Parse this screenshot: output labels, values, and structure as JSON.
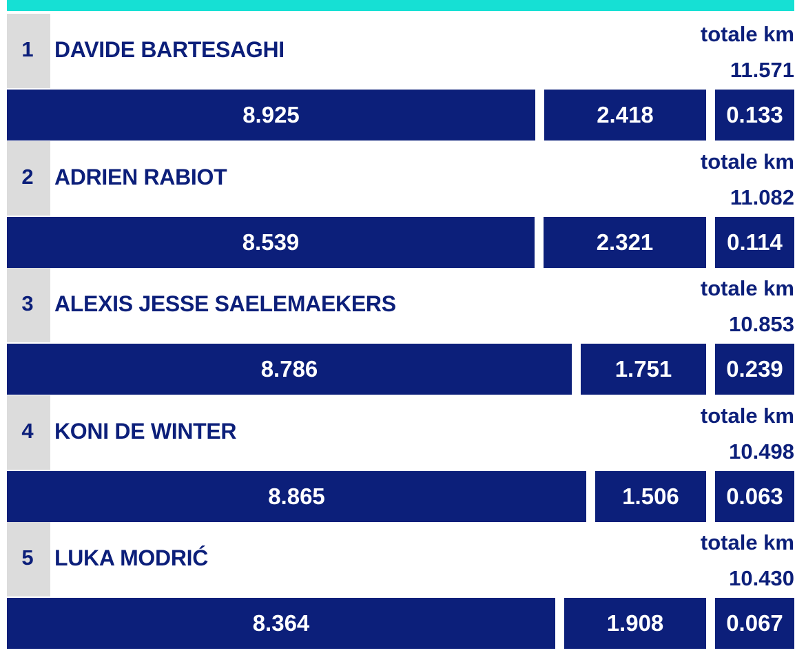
{
  "colors": {
    "accent_bar": "#16e0d4",
    "navy": "#0c1f7a",
    "rank_bg": "#dcdcdc",
    "text": "#0c1f7a",
    "bar_text": "#ffffff"
  },
  "chart_data": {
    "type": "bar",
    "orientation": "horizontal",
    "stacked": true,
    "total_label": "totale km",
    "categories": [
      "DAVIDE BARTESAGHI",
      "ADRIEN RABIOT",
      "ALEXIS JESSE SAELEMAEKERS",
      "KONI DE WINTER",
      "LUKA MODRIĆ"
    ],
    "players": [
      {
        "rank": "1",
        "name": "DAVIDE BARTESAGHI",
        "total_label": "totale km",
        "total": "11.571",
        "segments": [
          "8.925",
          "2.418",
          "0.133"
        ]
      },
      {
        "rank": "2",
        "name": "ADRIEN RABIOT",
        "total_label": "totale km",
        "total": "11.082",
        "segments": [
          "8.539",
          "2.321",
          "0.114"
        ]
      },
      {
        "rank": "3",
        "name": "ALEXIS JESSE SAELEMAEKERS",
        "total_label": "totale km",
        "total": "10.853",
        "segments": [
          "8.786",
          "1.751",
          "0.239"
        ]
      },
      {
        "rank": "4",
        "name": "KONI DE WINTER",
        "total_label": "totale km",
        "total": "10.498",
        "segments": [
          "8.865",
          "1.506",
          "0.063"
        ]
      },
      {
        "rank": "5",
        "name": "LUKA MODRIĆ",
        "total_label": "totale km",
        "total": "10.430",
        "segments": [
          "8.364",
          "1.908",
          "0.067"
        ]
      }
    ]
  }
}
